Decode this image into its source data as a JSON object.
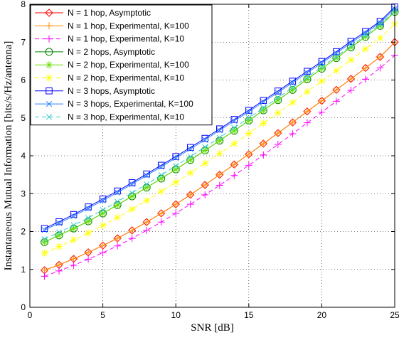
{
  "chart_data": {
    "type": "line",
    "title": "",
    "xlabel": "SNR [dB]",
    "ylabel": "Instantaneous Mutual Information [bits/s/Hz/antenna]",
    "xlim": [
      0,
      25
    ],
    "ylim": [
      0,
      8
    ],
    "xticks": [
      0,
      5,
      10,
      15,
      20,
      25
    ],
    "yticks": [
      0,
      1,
      2,
      3,
      4,
      5,
      6,
      7,
      8
    ],
    "grid": true,
    "legend_position": "top-left",
    "x": [
      1,
      2,
      3,
      4,
      5,
      6,
      7,
      8,
      9,
      10,
      11,
      12,
      13,
      14,
      15,
      16,
      17,
      18,
      19,
      20,
      21,
      22,
      23,
      24,
      25
    ],
    "series": [
      {
        "name": "N = 1 hop, Asymptotic",
        "color": "#ff0000",
        "marker": "diamond",
        "dash": "solid",
        "values": [
          0.98,
          1.12,
          1.28,
          1.45,
          1.63,
          1.82,
          2.03,
          2.25,
          2.48,
          2.72,
          2.97,
          3.23,
          3.5,
          3.77,
          4.04,
          4.32,
          4.6,
          4.88,
          5.17,
          5.45,
          5.74,
          6.03,
          6.32,
          6.61,
          7.0
        ]
      },
      {
        "name": "N = 1 hop, Experimental, K=100",
        "color": "#ff8c00",
        "marker": "plus",
        "dash": "solid",
        "values": [
          0.98,
          1.12,
          1.28,
          1.45,
          1.63,
          1.82,
          2.03,
          2.25,
          2.48,
          2.72,
          2.97,
          3.23,
          3.5,
          3.77,
          4.04,
          4.32,
          4.6,
          4.88,
          5.17,
          5.45,
          5.74,
          6.03,
          6.32,
          6.61,
          7.0
        ]
      },
      {
        "name": "N = 1 hop, Experimental, K=10",
        "color": "#ff00ff",
        "marker": "plus",
        "dash": "dashed",
        "values": [
          0.82,
          0.96,
          1.11,
          1.27,
          1.44,
          1.62,
          1.82,
          2.03,
          2.25,
          2.48,
          2.72,
          2.97,
          3.22,
          3.48,
          3.75,
          4.02,
          4.3,
          4.58,
          4.87,
          5.15,
          5.44,
          5.73,
          6.02,
          6.32,
          6.65
        ]
      },
      {
        "name": "N = 2 hops, Asymptotic",
        "color": "#008000",
        "marker": "circle",
        "dash": "solid",
        "values": [
          1.72,
          1.9,
          2.08,
          2.27,
          2.48,
          2.7,
          2.93,
          3.16,
          3.4,
          3.64,
          3.89,
          4.14,
          4.4,
          4.66,
          4.93,
          5.2,
          5.47,
          5.74,
          6.02,
          6.3,
          6.58,
          6.86,
          7.14,
          7.43,
          7.8
        ]
      },
      {
        "name": "N = 2 hop, Experimental, K=100",
        "color": "#66dd00",
        "marker": "star",
        "dash": "solid",
        "values": [
          1.72,
          1.9,
          2.08,
          2.27,
          2.48,
          2.7,
          2.93,
          3.16,
          3.4,
          3.64,
          3.89,
          4.14,
          4.4,
          4.66,
          4.93,
          5.2,
          5.47,
          5.74,
          6.02,
          6.3,
          6.58,
          6.86,
          7.14,
          7.43,
          7.8
        ]
      },
      {
        "name": "N = 2 hop, Experimental, K=10",
        "color": "#ffff00",
        "marker": "star",
        "dash": "dashed",
        "values": [
          1.43,
          1.6,
          1.78,
          1.96,
          2.16,
          2.37,
          2.59,
          2.82,
          3.06,
          3.3,
          3.55,
          3.8,
          4.06,
          4.32,
          4.59,
          4.86,
          5.13,
          5.41,
          5.69,
          5.97,
          6.25,
          6.53,
          6.82,
          7.11,
          7.48
        ]
      },
      {
        "name": "N = 3 hops, Asymptotic",
        "color": "#0000ff",
        "marker": "square",
        "dash": "solid",
        "values": [
          2.08,
          2.26,
          2.45,
          2.65,
          2.86,
          3.07,
          3.29,
          3.52,
          3.75,
          3.98,
          4.22,
          4.46,
          4.71,
          4.96,
          5.2,
          5.46,
          5.71,
          5.97,
          6.23,
          6.49,
          6.75,
          7.02,
          7.28,
          7.55,
          7.93
        ]
      },
      {
        "name": "N = 3 hops, Experimental, K=100",
        "color": "#2a7fff",
        "marker": "x",
        "dash": "solid",
        "values": [
          2.04,
          2.22,
          2.41,
          2.61,
          2.82,
          3.03,
          3.25,
          3.48,
          3.71,
          3.94,
          4.18,
          4.42,
          4.67,
          4.92,
          5.16,
          5.42,
          5.67,
          5.93,
          6.19,
          6.45,
          6.71,
          6.98,
          7.24,
          7.51,
          7.88
        ]
      },
      {
        "name": "N = 3 hop, Experimental, K=10",
        "color": "#33cccc",
        "marker": "x",
        "dash": "dashed",
        "values": [
          1.8,
          1.98,
          2.17,
          2.36,
          2.57,
          2.79,
          3.02,
          3.25,
          3.49,
          3.73,
          3.98,
          4.23,
          4.48,
          4.74,
          5.0,
          5.26,
          5.53,
          5.8,
          6.07,
          6.35,
          6.62,
          6.9,
          7.18,
          7.47,
          7.82
        ]
      }
    ]
  }
}
